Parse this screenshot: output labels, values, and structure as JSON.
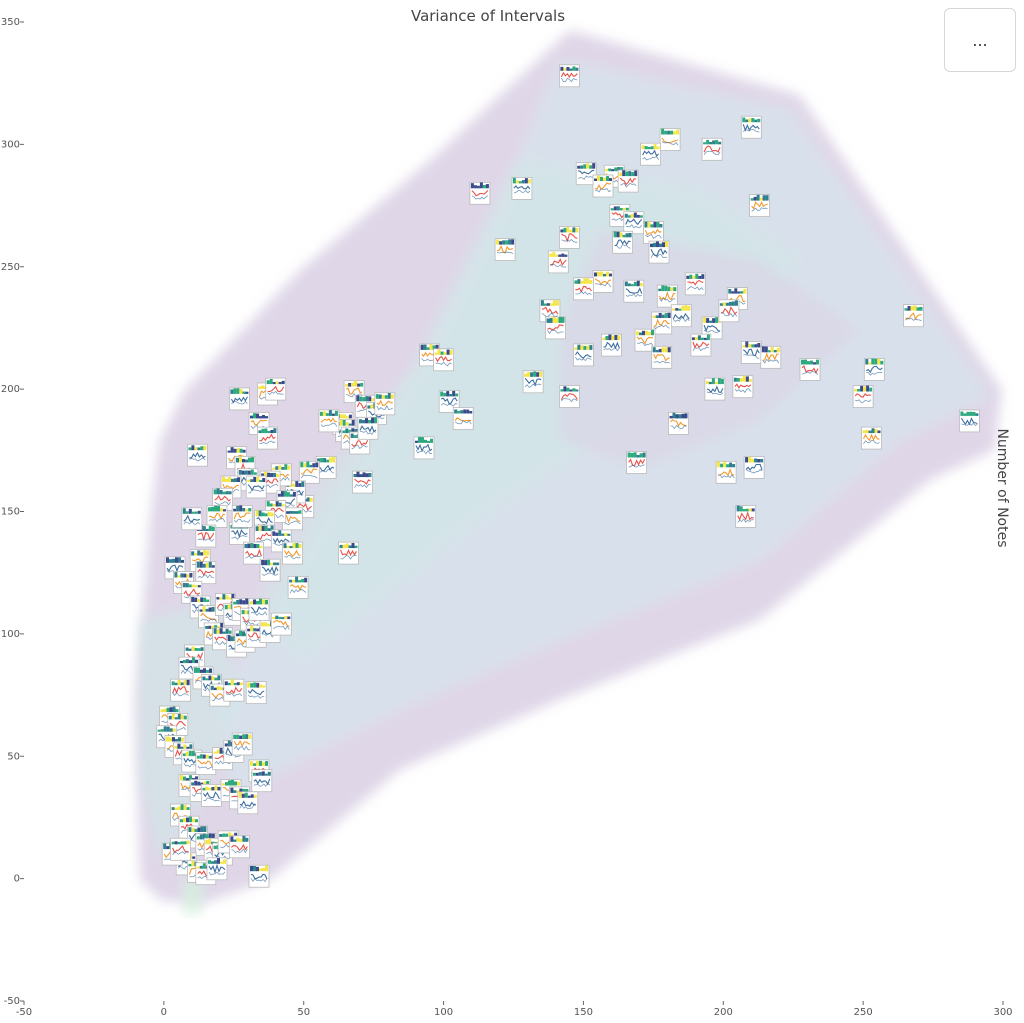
{
  "chart_data": {
    "type": "scatter",
    "title": "Variance of Intervals",
    "xlabel": "",
    "ylabel": "Number of Notes",
    "xlim": [
      -50,
      300
    ],
    "ylim": [
      -50,
      350
    ],
    "x_ticks": [
      "-50",
      "0",
      "50",
      "100",
      "150",
      "200",
      "250",
      "300"
    ],
    "y_ticks": [
      "350",
      "300",
      "250",
      "200",
      "150",
      "100",
      "50",
      "0",
      "-50"
    ],
    "marker": "thumbnail",
    "points": [
      [
        145,
        328
      ],
      [
        210,
        307
      ],
      [
        181,
        302
      ],
      [
        196,
        298
      ],
      [
        174,
        296
      ],
      [
        161,
        287
      ],
      [
        166,
        285
      ],
      [
        151,
        288
      ],
      [
        157,
        283
      ],
      [
        113,
        280
      ],
      [
        128,
        282
      ],
      [
        213,
        275
      ],
      [
        163,
        271
      ],
      [
        168,
        268
      ],
      [
        175,
        264
      ],
      [
        145,
        262
      ],
      [
        164,
        260
      ],
      [
        122,
        257
      ],
      [
        141,
        252
      ],
      [
        177,
        256
      ],
      [
        157,
        244
      ],
      [
        150,
        241
      ],
      [
        168,
        240
      ],
      [
        180,
        238
      ],
      [
        190,
        243
      ],
      [
        196,
        225
      ],
      [
        205,
        237
      ],
      [
        202,
        232
      ],
      [
        185,
        230
      ],
      [
        178,
        227
      ],
      [
        138,
        232
      ],
      [
        160,
        218
      ],
      [
        172,
        220
      ],
      [
        140,
        225
      ],
      [
        150,
        214
      ],
      [
        178,
        213
      ],
      [
        192,
        218
      ],
      [
        210,
        215
      ],
      [
        217,
        213
      ],
      [
        231,
        208
      ],
      [
        254,
        208
      ],
      [
        268,
        230
      ],
      [
        250,
        197
      ],
      [
        288,
        187
      ],
      [
        253,
        180
      ],
      [
        207,
        201
      ],
      [
        197,
        200
      ],
      [
        184,
        186
      ],
      [
        169,
        170
      ],
      [
        211,
        168
      ],
      [
        201,
        166
      ],
      [
        208,
        148
      ],
      [
        132,
        203
      ],
      [
        95,
        214
      ],
      [
        100,
        212
      ],
      [
        102,
        195
      ],
      [
        107,
        188
      ],
      [
        145,
        197
      ],
      [
        93,
        176
      ],
      [
        68,
        199
      ],
      [
        72,
        193
      ],
      [
        76,
        190
      ],
      [
        79,
        194
      ],
      [
        64,
        186
      ],
      [
        65,
        183
      ],
      [
        67,
        180
      ],
      [
        70,
        178
      ],
      [
        73,
        184
      ],
      [
        59,
        187
      ],
      [
        71,
        162
      ],
      [
        58,
        168
      ],
      [
        52,
        166
      ],
      [
        50,
        152
      ],
      [
        47,
        158
      ],
      [
        42,
        165
      ],
      [
        38,
        162
      ],
      [
        44,
        154
      ],
      [
        46,
        147
      ],
      [
        40,
        150
      ],
      [
        36,
        146
      ],
      [
        34,
        186
      ],
      [
        37,
        180
      ],
      [
        27,
        196
      ],
      [
        37,
        198
      ],
      [
        40,
        200
      ],
      [
        12,
        173
      ],
      [
        26,
        172
      ],
      [
        29,
        168
      ],
      [
        30,
        163
      ],
      [
        24,
        160
      ],
      [
        21,
        155
      ],
      [
        33,
        160
      ],
      [
        19,
        148
      ],
      [
        15,
        140
      ],
      [
        27,
        141
      ],
      [
        28,
        148
      ],
      [
        36,
        140
      ],
      [
        42,
        138
      ],
      [
        46,
        133
      ],
      [
        32,
        133
      ],
      [
        38,
        126
      ],
      [
        48,
        119
      ],
      [
        66,
        133
      ],
      [
        10,
        147
      ],
      [
        13,
        130
      ],
      [
        15,
        125
      ],
      [
        4,
        127
      ],
      [
        7,
        121
      ],
      [
        10,
        117
      ],
      [
        13,
        111
      ],
      [
        16,
        107
      ],
      [
        22,
        112
      ],
      [
        25,
        108
      ],
      [
        28,
        110
      ],
      [
        31,
        106
      ],
      [
        34,
        110
      ],
      [
        18,
        100
      ],
      [
        21,
        98
      ],
      [
        26,
        95
      ],
      [
        29,
        97
      ],
      [
        33,
        99
      ],
      [
        38,
        101
      ],
      [
        42,
        104
      ],
      [
        11,
        91
      ],
      [
        9,
        86
      ],
      [
        14,
        82
      ],
      [
        6,
        77
      ],
      [
        17,
        79
      ],
      [
        20,
        75
      ],
      [
        25,
        77
      ],
      [
        33,
        76
      ],
      [
        2,
        66
      ],
      [
        5,
        63
      ],
      [
        1,
        58
      ],
      [
        4,
        54
      ],
      [
        7,
        51
      ],
      [
        10,
        48
      ],
      [
        15,
        47
      ],
      [
        21,
        49
      ],
      [
        25,
        52
      ],
      [
        28,
        55
      ],
      [
        34,
        44
      ],
      [
        35,
        40
      ],
      [
        9,
        38
      ],
      [
        13,
        36
      ],
      [
        17,
        34
      ],
      [
        24,
        36
      ],
      [
        27,
        33
      ],
      [
        30,
        31
      ],
      [
        6,
        26
      ],
      [
        9,
        21
      ],
      [
        12,
        17
      ],
      [
        15,
        14
      ],
      [
        18,
        12
      ],
      [
        21,
        10
      ],
      [
        23,
        15
      ],
      [
        27,
        13
      ],
      [
        8,
        6
      ],
      [
        12,
        3
      ],
      [
        15,
        2
      ],
      [
        19,
        4
      ],
      [
        3,
        10
      ],
      [
        6,
        12
      ],
      [
        34,
        1
      ]
    ]
  },
  "menu_button": {
    "label": "..."
  },
  "colors": {
    "region_purple": "#dcd3e6",
    "region_blue": "#d7e3ec",
    "region_teal": "#cfe8e6",
    "region_green": "#d6f0df",
    "thumb_border": "#b9b9b9",
    "line_red": "#e8514a",
    "line_blue": "#3f6f9f",
    "line_orange": "#f29a2e",
    "bar_yellow": "#f4e64a",
    "bar_green": "#2ea97f",
    "bar_navy": "#3a4b8c",
    "bar_teal": "#2f7f8e"
  }
}
